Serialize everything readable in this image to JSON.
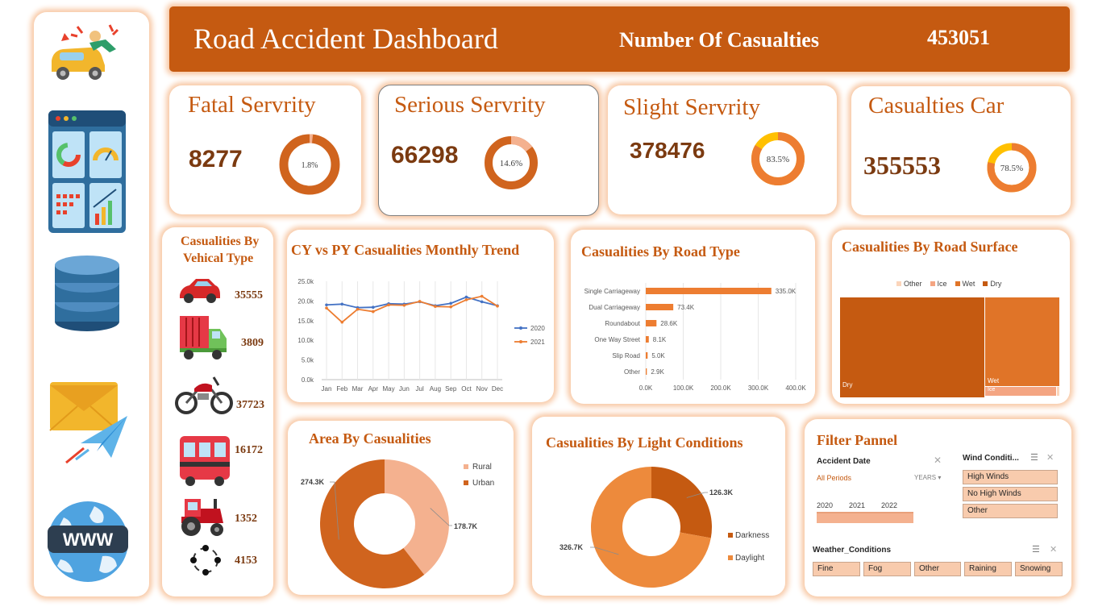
{
  "header": {
    "title": "Road Accident Dashboard",
    "casualties_label": "Number Of Casualties",
    "casualties_value": "453051",
    "bg_color": "#c55a11"
  },
  "sidebar": {
    "icons": [
      "car-accident-icon",
      "dashboard-icon",
      "database-icon",
      "email-send-icon",
      "www-globe-icon"
    ]
  },
  "kpis": {
    "fatal": {
      "title": "Fatal Servrity",
      "value": "8277",
      "pct_label": "1.8%",
      "pct": 1.8
    },
    "serious": {
      "title": "Serious Servrity",
      "value": "66298",
      "pct_label": "14.6%",
      "pct": 14.6
    },
    "slight": {
      "title": "Slight Servrity",
      "value": "378476",
      "pct_label": "83.5%",
      "pct": 83.5
    },
    "car": {
      "title": "Casualties Car",
      "value": "355553",
      "pct_label": "78.5%",
      "pct": 78.5
    }
  },
  "vehicle_type": {
    "title_line1": "Casualities By",
    "title_line2": "Vehical Type",
    "items": [
      {
        "icon": "car-icon",
        "value": "35555"
      },
      {
        "icon": "truck-icon",
        "value": "3809"
      },
      {
        "icon": "motorcycle-icon",
        "value": "37723"
      },
      {
        "icon": "bus-icon",
        "value": "16172"
      },
      {
        "icon": "tractor-icon",
        "value": "1352"
      },
      {
        "icon": "other-vehicle-icon",
        "value": "4153"
      }
    ]
  },
  "monthly_trend": {
    "title": "CY vs PY Casualities Monthly Trend",
    "chart_data": {
      "type": "line",
      "categories": [
        "Jan",
        "Feb",
        "Mar",
        "Apr",
        "May",
        "Jun",
        "Jul",
        "Aug",
        "Sep",
        "Oct",
        "Nov",
        "Dec"
      ],
      "series": [
        {
          "name": "2020",
          "color": "#4472c4",
          "values": [
            19000,
            19200,
            18300,
            18400,
            19300,
            19200,
            19800,
            18800,
            19400,
            21000,
            19800,
            18800
          ]
        },
        {
          "name": "2021",
          "color": "#ed7d31",
          "values": [
            18200,
            14600,
            17900,
            17300,
            19000,
            18900,
            19900,
            18600,
            18500,
            20300,
            21200,
            18700
          ]
        }
      ],
      "yticks": [
        "0.0k",
        "5.0k",
        "10.0k",
        "15.0k",
        "20.0k",
        "25.0k"
      ],
      "ylim": [
        0,
        25000
      ]
    }
  },
  "road_type": {
    "title": "Casualities By Road Type",
    "chart_data": {
      "type": "bar",
      "categories": [
        "Single Carriageway",
        "Dual Carriageway",
        "Roundabout",
        "One Way Street",
        "Slip Road",
        "Other"
      ],
      "values": [
        335000,
        73400,
        28600,
        8100,
        5000,
        2900
      ],
      "labels": [
        "335.0K",
        "73.4K",
        "28.6K",
        "8.1K",
        "5.0K",
        "2.9K"
      ],
      "xticks": [
        "0.0K",
        "100.0K",
        "200.0K",
        "300.0K",
        "400.0K"
      ],
      "xlim": [
        0,
        400000
      ]
    }
  },
  "road_surface": {
    "title": "Casualities By Road Surface",
    "chart_data": {
      "type": "treemap",
      "legend": [
        "Other",
        "Ice",
        "Wet",
        "Dry"
      ],
      "legend_colors": [
        "#fbd5bb",
        "#f4a582",
        "#e07428",
        "#c55a11"
      ],
      "labels": {
        "dry": "Dry",
        "wet": "Wet",
        "ice": "Ice"
      }
    }
  },
  "area": {
    "title": "Area By Casualities",
    "chart_data": {
      "type": "pie",
      "series": [
        {
          "name": "Rural",
          "value": 178700,
          "label": "178.7K",
          "color": "#f4b18f"
        },
        {
          "name": "Urban",
          "value": 274300,
          "label": "274.3K",
          "color": "#d0641e"
        }
      ]
    }
  },
  "light": {
    "title": "Casualities By Light Conditions",
    "chart_data": {
      "type": "pie",
      "series": [
        {
          "name": "Darkness",
          "value": 126300,
          "label": "126.3K",
          "color": "#c55a11"
        },
        {
          "name": "Daylight",
          "value": 326700,
          "label": "326.7K",
          "color": "#ed8a3c"
        }
      ]
    }
  },
  "filter": {
    "title": "Filter Pannel",
    "accident_date_label": "Accident Date",
    "all_periods": "All Periods",
    "years_label": "YEARS",
    "years": [
      "2020",
      "2021",
      "2022"
    ],
    "wind_title": "Wind Conditi...",
    "wind_options": [
      "High Winds",
      "No High Winds",
      "Other"
    ],
    "weather_title": "Weather_Conditions",
    "weather_options": [
      "Fine",
      "Fog",
      "Other",
      "Raining",
      "Snowing"
    ]
  }
}
